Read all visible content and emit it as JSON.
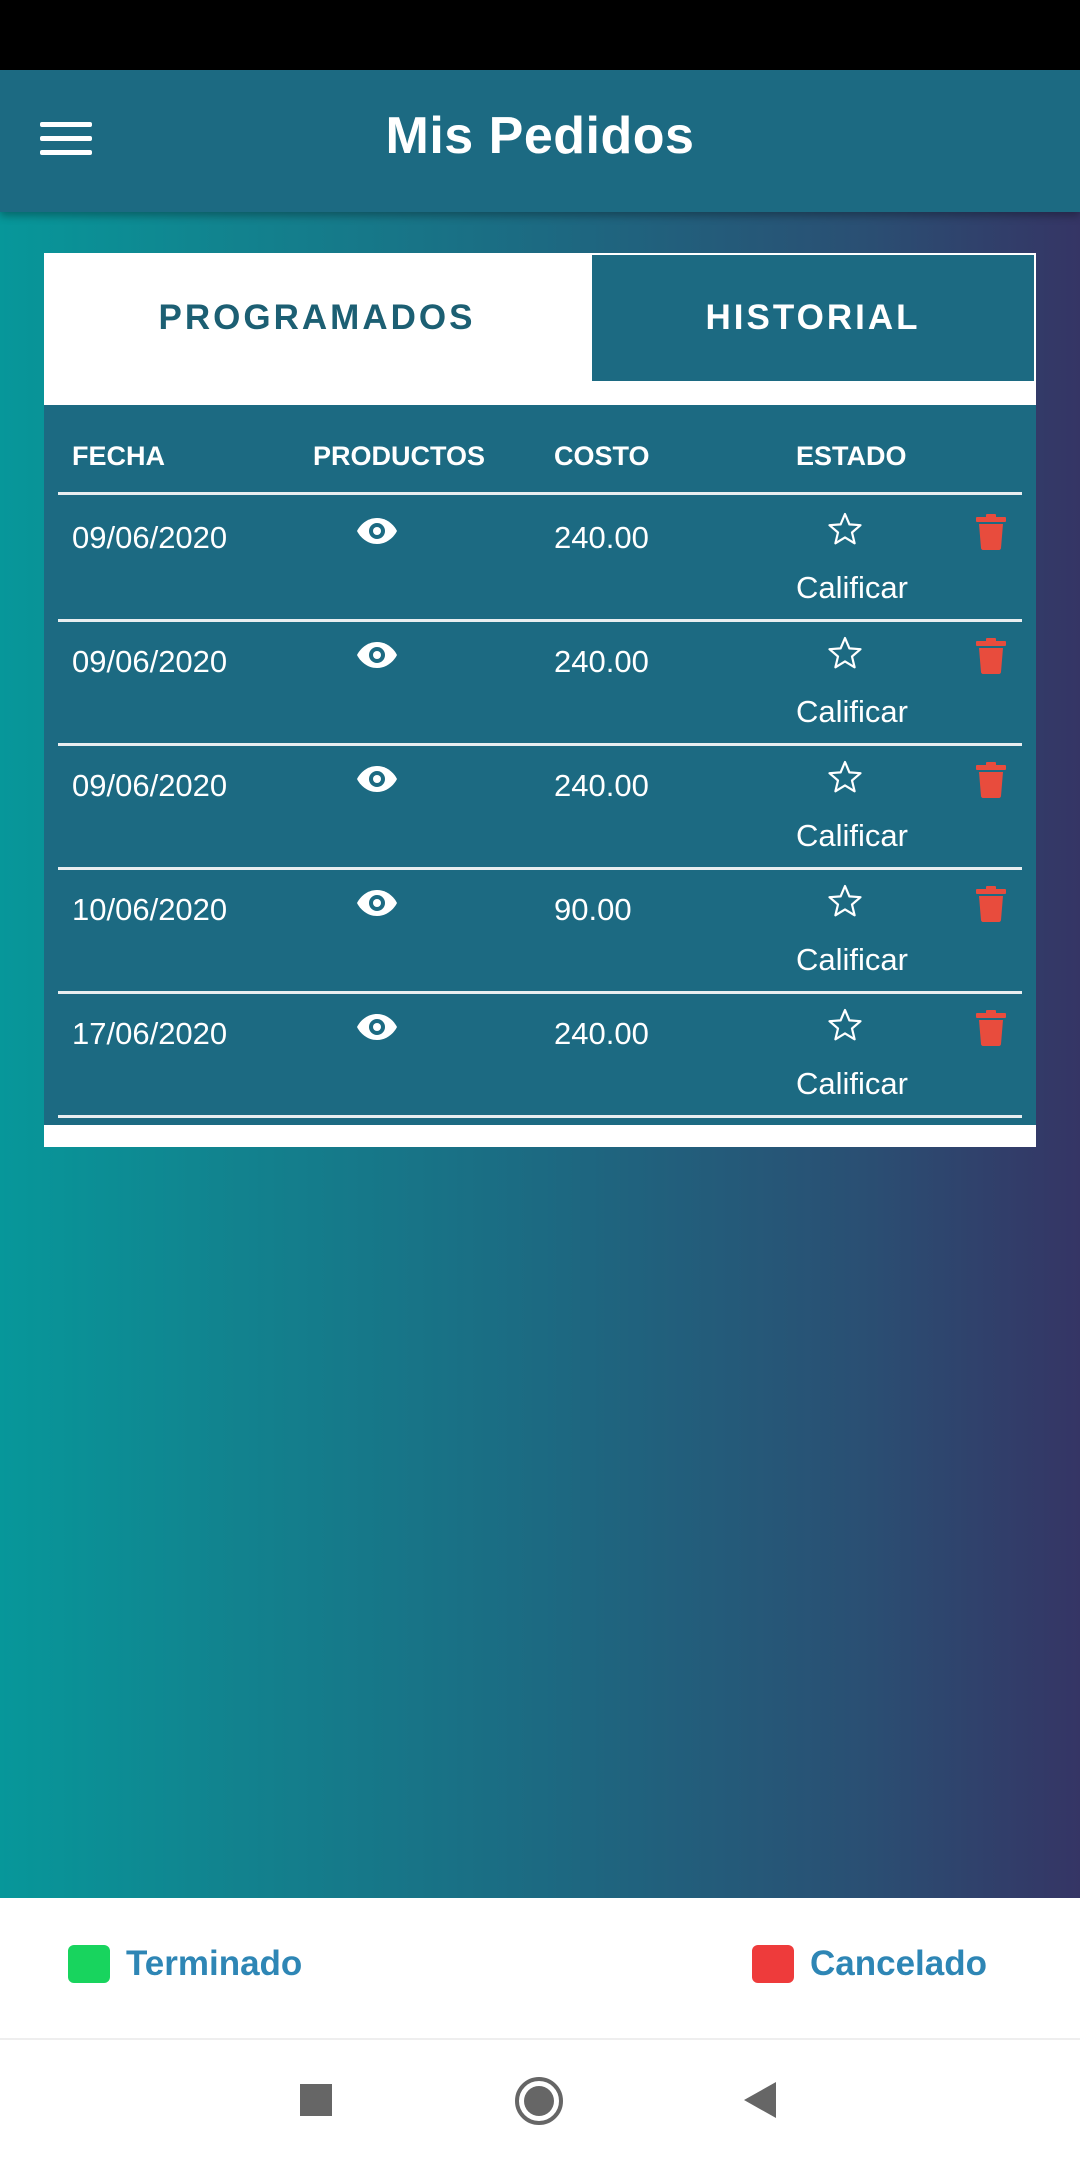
{
  "app_bar": {
    "title": "Mis Pedidos",
    "menu_icon": "hamburger-menu-icon"
  },
  "tabs": [
    {
      "label": "PROGRAMADOS",
      "selected": true
    },
    {
      "label": "HISTORIAL",
      "selected": false
    }
  ],
  "table": {
    "headers": {
      "fecha": "FECHA",
      "productos": "PRODUCTOS",
      "costo": "COSTO",
      "estado": "ESTADO"
    },
    "rows": [
      {
        "fecha": "09/06/2020",
        "costo": "240.00",
        "estado_action": "Calificar"
      },
      {
        "fecha": "09/06/2020",
        "costo": "240.00",
        "estado_action": "Calificar"
      },
      {
        "fecha": "09/06/2020",
        "costo": "240.00",
        "estado_action": "Calificar"
      },
      {
        "fecha": "10/06/2020",
        "costo": "90.00",
        "estado_action": "Calificar"
      },
      {
        "fecha": "17/06/2020",
        "costo": "240.00",
        "estado_action": "Calificar"
      }
    ]
  },
  "legend": {
    "terminado": {
      "label": "Terminado",
      "color": "#18d45e"
    },
    "cancelado": {
      "label": "Cancelado",
      "color": "#ee3b3b"
    }
  },
  "colors": {
    "primary": "#1c6a82",
    "delete_icon": "#e84c3d",
    "legend_text": "#2e86b5"
  }
}
